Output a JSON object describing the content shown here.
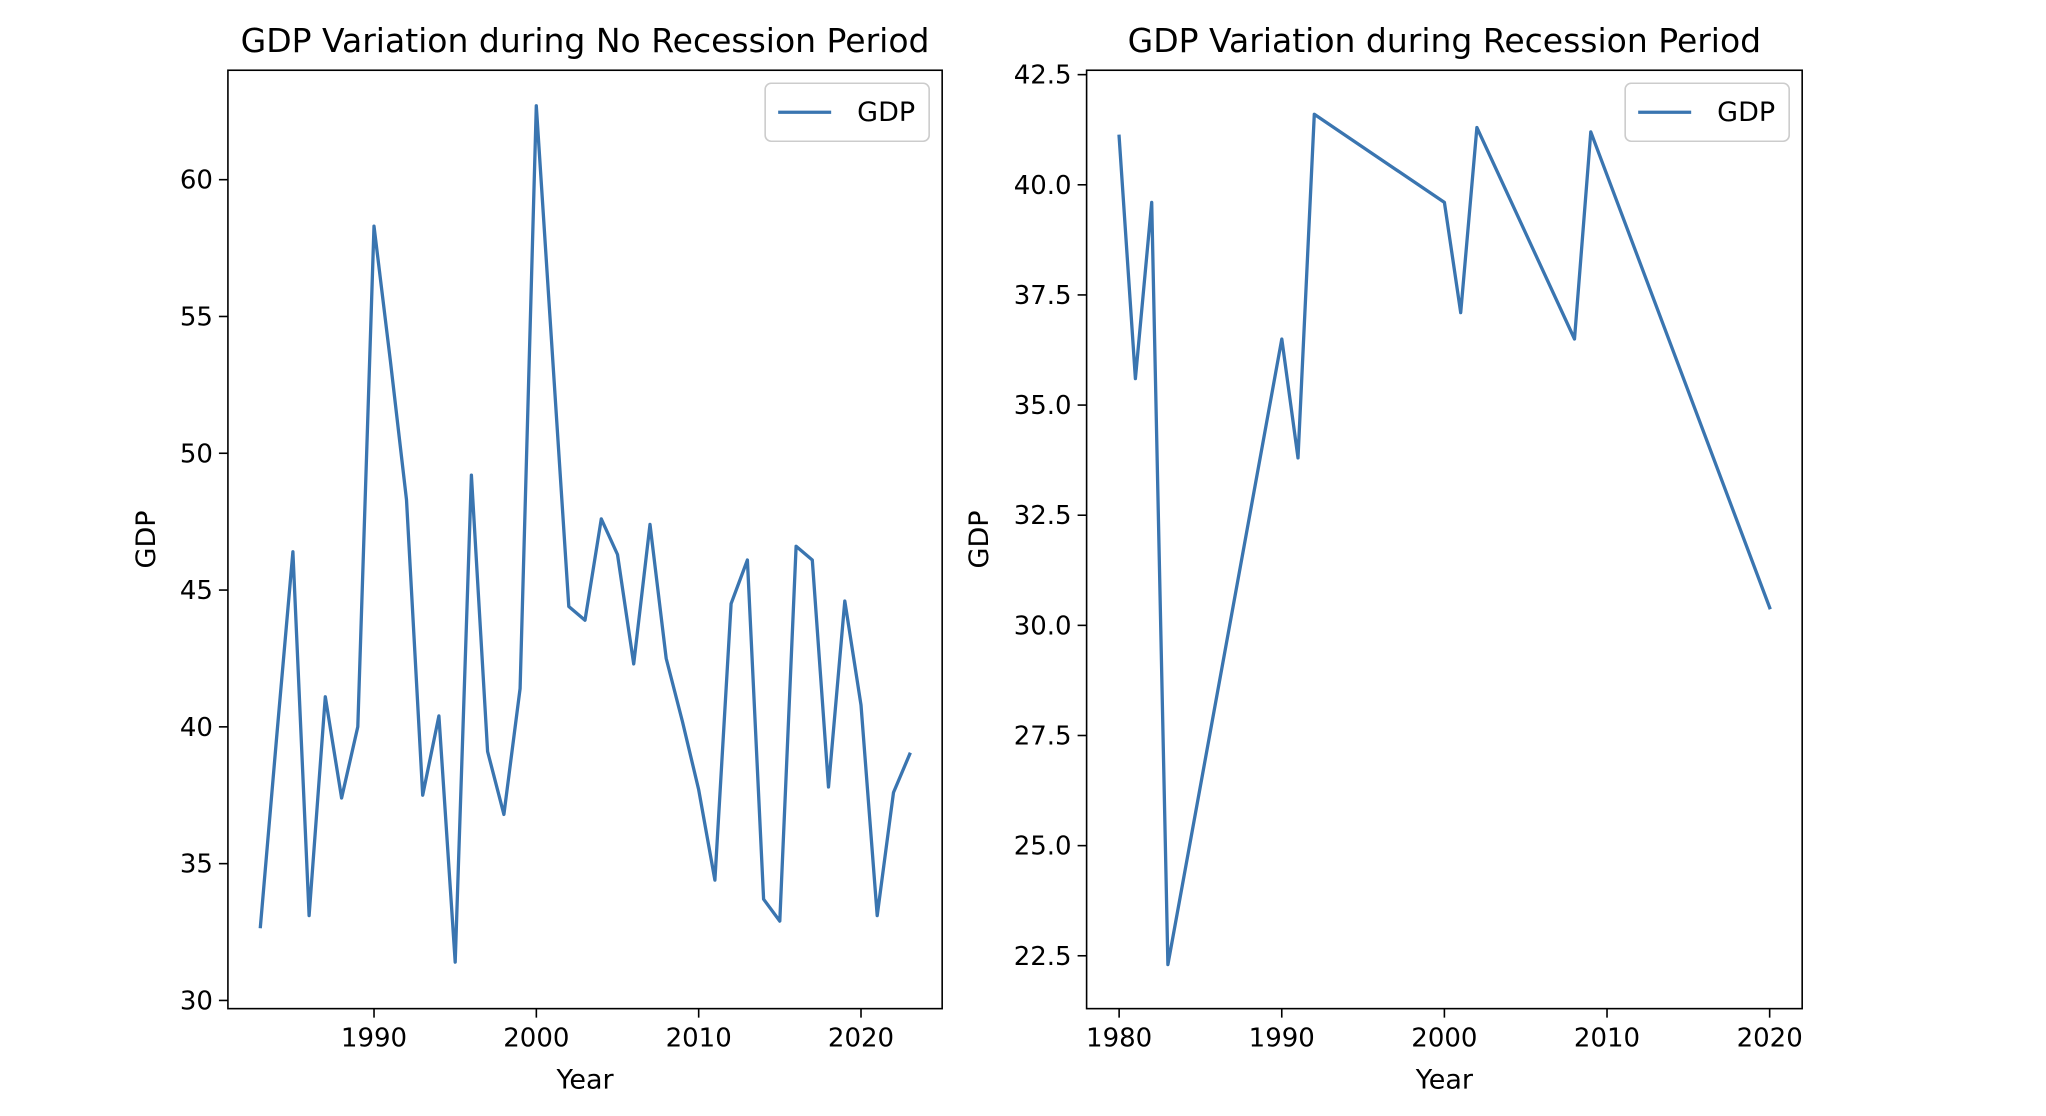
{
  "chart_data": [
    {
      "type": "line",
      "title": "GDP Variation during No Recession Period",
      "xlabel": "Year",
      "ylabel": "GDP",
      "xlim": [
        1981.0,
        2025.0
      ],
      "ylim": [
        29.7,
        64.0
      ],
      "xticks": [
        1990,
        2000,
        2010,
        2020
      ],
      "yticks": [
        30,
        35,
        40,
        45,
        50,
        55,
        60
      ],
      "grid": false,
      "legend": "top-right",
      "color": "#3a75b0",
      "series": [
        {
          "name": "GDP",
          "x": [
            1983,
            1984,
            1985,
            1986,
            1987,
            1988,
            1989,
            1990,
            1991,
            1992,
            1993,
            1994,
            1995,
            1996,
            1997,
            1998,
            1999,
            2000,
            2001,
            2002,
            2003,
            2004,
            2005,
            2006,
            2007,
            2008,
            2009,
            2010,
            2011,
            2012,
            2013,
            2014,
            2015,
            2016,
            2017,
            2018,
            2019,
            2020,
            2021,
            2022,
            2023
          ],
          "values": [
            32.7,
            39.6,
            46.4,
            33.1,
            41.1,
            37.4,
            40.0,
            58.3,
            53.4,
            48.3,
            37.5,
            40.4,
            31.4,
            49.2,
            39.1,
            36.8,
            41.4,
            62.7,
            53.5,
            44.4,
            43.9,
            47.6,
            46.3,
            42.3,
            47.4,
            42.5,
            40.2,
            37.7,
            34.4,
            44.5,
            46.1,
            33.7,
            32.9,
            46.6,
            46.1,
            37.8,
            44.6,
            40.8,
            33.1,
            37.6,
            39.0
          ]
        }
      ]
    },
    {
      "type": "line",
      "title": "GDP Variation during Recession Period",
      "xlabel": "Year",
      "ylabel": "GDP",
      "xlim": [
        1978.0,
        2022.0
      ],
      "ylim": [
        21.3,
        42.6
      ],
      "xticks": [
        1980,
        1990,
        2000,
        2010,
        2020
      ],
      "yticks": [
        22.5,
        25.0,
        27.5,
        30.0,
        32.5,
        35.0,
        37.5,
        40.0,
        42.5
      ],
      "ytick_labels": [
        "22.5",
        "25.0",
        "27.5",
        "30.0",
        "32.5",
        "35.0",
        "37.5",
        "40.0",
        "42.5"
      ],
      "grid": false,
      "legend": "top-right",
      "color": "#3a75b0",
      "series": [
        {
          "name": "GDP",
          "x": [
            1980,
            1981,
            1982,
            1983,
            1990,
            1991,
            1992,
            2000,
            2001,
            2002,
            2008,
            2009,
            2020
          ],
          "values": [
            41.1,
            35.6,
            39.6,
            22.3,
            36.5,
            33.8,
            41.6,
            39.6,
            37.1,
            41.3,
            36.5,
            41.2,
            30.4
          ]
        }
      ]
    }
  ]
}
